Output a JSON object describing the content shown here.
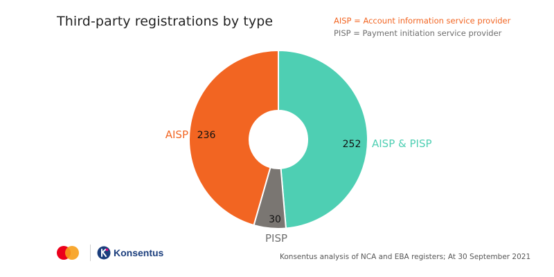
{
  "header": {
    "title": "Third-party registrations by type",
    "legend_aisp": "AISP = Account information service provider",
    "legend_pisp": "PISP = Payment initiation service provider"
  },
  "colors": {
    "aisp": "#f26522",
    "aisp_pisp": "#4ecfb3",
    "pisp": "#7a7672",
    "text_dark": "#222222"
  },
  "chart_data": {
    "type": "pie",
    "donut": true,
    "categories": [
      "AISP & PISP",
      "PISP",
      "AISP"
    ],
    "values": [
      252,
      30,
      236
    ],
    "labels": [
      "AISP & PISP",
      "PISP",
      "AISP"
    ],
    "value_labels": [
      "252",
      "30",
      "236"
    ],
    "label_colors": [
      "#4ecfb3",
      "#6e6e6e",
      "#f26522"
    ]
  },
  "footer": {
    "source": "Konsentus analysis of NCA and EBA registers;  At 30 September 2021",
    "brand": "Konsentus"
  }
}
